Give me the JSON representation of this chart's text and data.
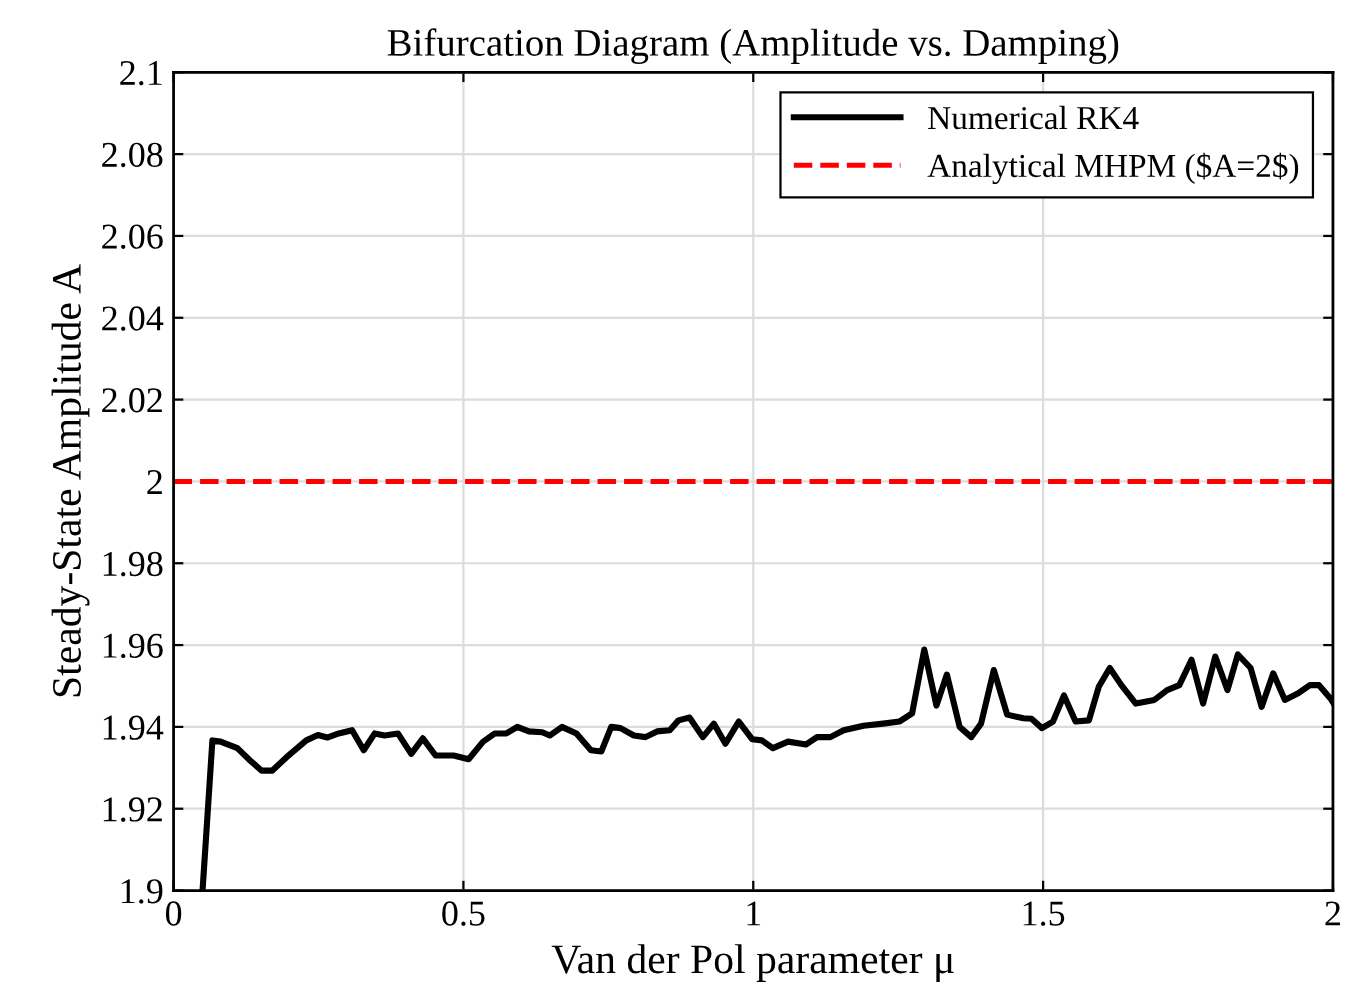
{
  "chart_data": {
    "type": "line",
    "title": "Bifurcation Diagram (Amplitude vs. Damping)",
    "xlabel": "Van der Pol parameter μ",
    "ylabel": "Steady-State Amplitude A",
    "series": [
      {
        "name": "Numerical RK4",
        "color": "#000000",
        "x": [
          0.05,
          0.067,
          0.081,
          0.11,
          0.132,
          0.152,
          0.17,
          0.195,
          0.229,
          0.249,
          0.265,
          0.285,
          0.308,
          0.328,
          0.347,
          0.364,
          0.387,
          0.41,
          0.43,
          0.452,
          0.483,
          0.509,
          0.534,
          0.554,
          0.574,
          0.593,
          0.613,
          0.636,
          0.649,
          0.67,
          0.695,
          0.72,
          0.738,
          0.755,
          0.771,
          0.794,
          0.814,
          0.834,
          0.856,
          0.871,
          0.89,
          0.913,
          0.932,
          0.952,
          0.975,
          0.998,
          1.015,
          1.034,
          1.06,
          1.091,
          1.11,
          1.133,
          1.156,
          1.19,
          1.224,
          1.252,
          1.274,
          1.295,
          1.316,
          1.334,
          1.356,
          1.376,
          1.393,
          1.415,
          1.438,
          1.466,
          1.48,
          1.498,
          1.517,
          1.536,
          1.556,
          1.579,
          1.596,
          1.615,
          1.635,
          1.66,
          1.692,
          1.714,
          1.735,
          1.756,
          1.776,
          1.797,
          1.818,
          1.836,
          1.858,
          1.877,
          1.897,
          1.917,
          1.94,
          1.96,
          1.976,
          1.996,
          2.0
        ],
        "values": [
          1.9,
          1.9367,
          1.9364,
          1.9348,
          1.9318,
          1.9293,
          1.9293,
          1.9326,
          1.9367,
          1.938,
          1.9374,
          1.9384,
          1.9392,
          1.9343,
          1.9384,
          1.9379,
          1.9384,
          1.9334,
          1.9372,
          1.933,
          1.933,
          1.9321,
          1.9364,
          1.9384,
          1.9384,
          1.94,
          1.9389,
          1.9387,
          1.9379,
          1.94,
          1.9384,
          1.9343,
          1.934,
          1.94,
          1.9397,
          1.9379,
          1.9375,
          1.9389,
          1.9392,
          1.9416,
          1.9423,
          1.9375,
          1.9408,
          1.9359,
          1.9413,
          1.937,
          1.9367,
          1.9348,
          1.9364,
          1.9357,
          1.9375,
          1.9375,
          1.9392,
          1.9403,
          1.9408,
          1.9413,
          1.9433,
          1.9589,
          1.9452,
          1.9528,
          1.94,
          1.9375,
          1.9408,
          1.9539,
          1.943,
          1.9421,
          1.942,
          1.9397,
          1.9413,
          1.9477,
          1.9413,
          1.9416,
          1.9498,
          1.9544,
          1.9502,
          1.9457,
          1.9466,
          1.949,
          1.9502,
          1.9564,
          1.9457,
          1.9572,
          1.949,
          1.9577,
          1.9544,
          1.9449,
          1.9531,
          1.9466,
          1.9482,
          1.9502,
          1.9502,
          1.9469,
          1.946
        ]
      }
    ],
    "ref_lines": [
      {
        "axis": "y",
        "value": 2,
        "label": "Analytical MHPM ($A=2$)",
        "color": "#ff0000",
        "line_style": "dashed"
      }
    ],
    "xlim": [
      0,
      2
    ],
    "xticks": [
      0,
      0.5,
      1,
      1.5,
      2
    ],
    "ylim": [
      1.9,
      2.1
    ],
    "yticks": [
      1.9,
      1.92,
      1.94,
      1.96,
      1.98,
      2,
      2.02,
      2.04,
      2.06,
      2.08,
      2.1
    ],
    "grid": true,
    "legend": "top right",
    "line_style": "solid",
    "marker": "none"
  }
}
